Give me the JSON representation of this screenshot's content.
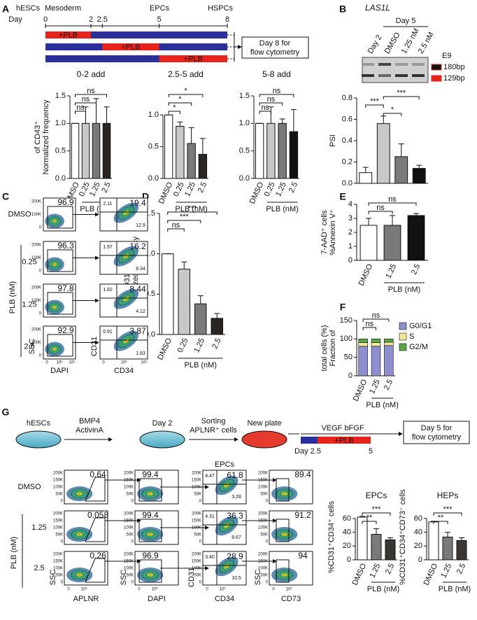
{
  "panel_labels": [
    "A",
    "B",
    "C",
    "D",
    "E",
    "F",
    "G"
  ],
  "schematic_a": {
    "day_label": "Day",
    "days": [
      0,
      2,
      2.5,
      5,
      8
    ],
    "stages": [
      "hESCs",
      "Mesoderm",
      "EPCs",
      "HSPCs"
    ],
    "treatments": [
      {
        "start": 0,
        "end": 2,
        "label": "+PLB"
      },
      {
        "start": 2.5,
        "end": 5,
        "label": "+PLB"
      },
      {
        "start": 5,
        "end": 8,
        "label": "+PLB"
      }
    ],
    "readout": [
      "Day 8 for",
      "flow cytometry"
    ]
  },
  "gel_b": {
    "gene": "LAS1L",
    "group": "Day 5",
    "exon": "E9",
    "bands": [
      "180bp",
      "129bp"
    ]
  },
  "flow_c": {
    "rows": [
      {
        "label": "DMSO",
        "gate": "96.9",
        "ul": "2.11",
        "ur": "19.4",
        "lr": "12.9"
      },
      {
        "label": "0.25",
        "gate": "96.3",
        "ul": "1.97",
        "ur": "16.2",
        "lr": "8.34"
      },
      {
        "label": "1.25",
        "gate": "97.8",
        "ul": "1.82",
        "ur": "8.44",
        "lr": "4.12"
      },
      {
        "label": "2.5",
        "gate": "92.9",
        "ul": "0.91",
        "ur": "3.87",
        "lr": "1.83"
      }
    ],
    "group_label": "PLB (nM)",
    "y_ticks": [
      "200K",
      "100K",
      "0"
    ],
    "x_ticks": [
      "0",
      "10³",
      "10⁵"
    ],
    "x_axes": [
      "DAPI",
      "CD34"
    ],
    "y_axes": [
      "SSC",
      "CD31"
    ]
  },
  "schematic_g": {
    "start": "hESCs",
    "factors": [
      "BMP4",
      "ActivinA"
    ],
    "day2": "Day 2",
    "sorting": [
      "Sorting",
      "APLNR⁺ cells"
    ],
    "plate": "New plate",
    "growth": "VEGF bFGF",
    "treatment": "+PLB",
    "days": [
      "Day 2.5",
      "5"
    ],
    "readout": [
      "Day 5 for",
      "flow cytometry"
    ]
  },
  "flow_g": {
    "heading": "EPCs",
    "rows": [
      {
        "label": "DMSO",
        "gate": "0.64",
        "live": "99.4",
        "ul": "4.47",
        "ur": "61.8",
        "lr": "3.28",
        "hep": "89.4"
      },
      {
        "label": "1.25",
        "gate": "0.058",
        "live": "99.4",
        "ul": "4.31",
        "ur": "36.3",
        "lr": "8.67",
        "hep": "91.2"
      },
      {
        "label": "2.5",
        "gate": "0.26",
        "live": "96.9",
        "ul": "3.40",
        "ur": "28.9",
        "lr": "10.5",
        "hep": "94"
      }
    ],
    "group_label": "PLB (nM)",
    "y_ticks": [
      "200K",
      "150K",
      "100K",
      "50K",
      "0"
    ],
    "x_ticks": [
      "0",
      "10³"
    ],
    "x_axes": [
      "APLNR",
      "DAPI",
      "CD34",
      "CD73"
    ],
    "y_axes": [
      "SSC",
      "SSC",
      "CD31",
      "SSC"
    ]
  },
  "chart_data": [
    {
      "type": "bar",
      "title": "0-2 add",
      "ylabel": [
        "Normalized frequency",
        "of CD43⁺"
      ],
      "xlabel": "PLB (nM)",
      "categories": [
        "DMSO",
        "0.25",
        "1.25",
        "2.5"
      ],
      "values": [
        1,
        1,
        1,
        1
      ],
      "errors": [
        0,
        0.3,
        0.45,
        0.3
      ],
      "colors": [
        "#ffffff",
        "#c8c8c8",
        "#7a7a7a",
        "#2a2622"
      ],
      "ylim": [
        0,
        1.5
      ],
      "yticks": [
        {
          "value": 0,
          "label": "0.0"
        },
        {
          "value": 0.5,
          "label": "0.5"
        },
        {
          "value": 1,
          "label": "1.0"
        },
        {
          "value": 1.5,
          "label": "1.5"
        }
      ],
      "brackets": [
        {
          "from": 0,
          "to": 3,
          "label": "ns"
        },
        {
          "from": 0,
          "to": 2,
          "label": "ns"
        },
        {
          "from": 0,
          "to": 1,
          "label": "ns"
        }
      ]
    },
    {
      "type": "bar",
      "title": "2.5-5 add",
      "xlabel": "PLB (nM)",
      "categories": [
        "DMSO",
        "0.25",
        "1.25",
        "2.5"
      ],
      "values": [
        1,
        0.82,
        0.55,
        0.38
      ],
      "errors": [
        0,
        0.07,
        0.25,
        0.25
      ],
      "colors": [
        "#ffffff",
        "#c8c8c8",
        "#7a7a7a",
        "#2a2622"
      ],
      "ylim": [
        0,
        1.3
      ],
      "yticks": [
        {
          "value": 0,
          "label": "0.0"
        },
        {
          "value": 0.5,
          "label": "0.5"
        },
        {
          "value": 1,
          "label": "1.0"
        }
      ],
      "brackets": [
        {
          "from": 0,
          "to": 3,
          "label": "*"
        },
        {
          "from": 0,
          "to": 2,
          "label": "*"
        },
        {
          "from": 0,
          "to": 1,
          "label": "*"
        }
      ]
    },
    {
      "type": "bar",
      "title": "5-8 add",
      "xlabel": "PLB (nM)",
      "categories": [
        "DMSO",
        "0.25",
        "1.25",
        "2.5"
      ],
      "values": [
        1,
        1,
        1,
        0.85
      ],
      "errors": [
        0,
        0.3,
        0.08,
        0.4
      ],
      "colors": [
        "#ffffff",
        "#c8c8c8",
        "#7a7a7a",
        "#111111"
      ],
      "ylim": [
        0,
        1.5
      ],
      "yticks": [
        {
          "value": 0,
          "label": "0.0"
        },
        {
          "value": 0.5,
          "label": "0.5"
        },
        {
          "value": 1,
          "label": "1.0"
        },
        {
          "value": 1.5,
          "label": "1.5"
        }
      ],
      "brackets": [
        {
          "from": 0,
          "to": 3,
          "label": "ns"
        },
        {
          "from": 0,
          "to": 2,
          "label": "ns"
        },
        {
          "from": 0,
          "to": 1,
          "label": "ns"
        }
      ]
    },
    {
      "type": "bar",
      "ylabel": [
        "PSI"
      ],
      "categories": [
        "Day 2",
        "DMSO",
        "1.25 nM",
        "2.5 nM"
      ],
      "values": [
        0.1,
        0.56,
        0.25,
        0.14
      ],
      "errors": [
        0.05,
        0.07,
        0.12,
        0.03
      ],
      "colors": [
        "#ffffff",
        "#c8c8c8",
        "#7a7a7a",
        "#111111"
      ],
      "ylim": [
        0,
        0.8
      ],
      "yticks": [
        {
          "value": 0,
          "label": "0.0"
        },
        {
          "value": 0.2,
          "label": "0.2"
        },
        {
          "value": 0.4,
          "label": "0.4"
        },
        {
          "value": 0.6,
          "label": "0.6"
        },
        {
          "value": 0.8,
          "label": "0.8"
        }
      ],
      "brackets": [
        {
          "from": 1,
          "to": 3,
          "label": "***"
        },
        {
          "from": 0,
          "to": 1,
          "label": "***"
        },
        {
          "from": 1,
          "to": 2,
          "label": "*"
        }
      ]
    },
    {
      "type": "bar",
      "ylabel": [
        "Normalized frequency",
        "of CD31⁺CD34⁺"
      ],
      "xlabel": "PLB (nM)",
      "categories": [
        "DMSO",
        "0.25",
        "1.25",
        "2.5"
      ],
      "values": [
        1,
        0.81,
        0.38,
        0.2
      ],
      "errors": [
        0,
        0.09,
        0.1,
        0.06
      ],
      "colors": [
        "#ffffff",
        "#c8c8c8",
        "#7a7a7a",
        "#2a2622"
      ],
      "ylim": [
        0,
        1.5
      ],
      "yticks": [
        {
          "value": 0,
          "label": "0.0"
        },
        {
          "value": 0.5,
          "label": "0.5"
        },
        {
          "value": 1,
          "label": "1.0"
        },
        {
          "value": 1.5,
          "label": "1.5"
        }
      ],
      "brackets": [
        {
          "from": 0,
          "to": 3,
          "label": "***"
        },
        {
          "from": 0,
          "to": 2,
          "label": "***"
        },
        {
          "from": 0,
          "to": 1,
          "label": "ns"
        }
      ]
    },
    {
      "type": "bar",
      "ylabel": [
        "%Annexin V⁺",
        "7-AAD⁺ cells"
      ],
      "xlabel": "PLB (nM)",
      "categories": [
        "DMSO",
        "1.25",
        "2.5"
      ],
      "values": [
        2.5,
        2.5,
        3.2
      ],
      "errors": [
        0.5,
        0.7,
        0.15
      ],
      "colors": [
        "#ffffff",
        "#7a7a7a",
        "#111111"
      ],
      "ylim": [
        0,
        4
      ],
      "yticks": [
        0,
        1,
        2,
        3,
        4
      ],
      "brackets": [
        {
          "from": 0,
          "to": 2,
          "label": "ns"
        },
        {
          "from": 0,
          "to": 1,
          "label": "ns"
        }
      ]
    },
    {
      "type": "stacked_bar",
      "ylabel": [
        "Fraction of",
        "total cells (%)"
      ],
      "xlabel": "PLB (nM)",
      "categories": [
        "DMSO",
        "1.25",
        "2.5"
      ],
      "series": [
        {
          "name": "G0/G1",
          "color": "#8f8fd0",
          "values": [
            80,
            80,
            82
          ]
        },
        {
          "name": "S",
          "color": "#f3e79a",
          "values": [
            10,
            10,
            9
          ]
        },
        {
          "name": "G2/M",
          "color": "#5aa548",
          "values": [
            10,
            10,
            9
          ]
        }
      ],
      "ylim": [
        0,
        150
      ],
      "yticks": [
        0,
        50,
        100,
        150
      ],
      "brackets": [
        {
          "from": 0,
          "to": 2,
          "label": "ns"
        },
        {
          "from": 0,
          "to": 1,
          "label": "ns"
        }
      ]
    },
    {
      "type": "bar",
      "title": "EPCs",
      "ylabel": [
        "%CD31⁺CD34⁺ cells"
      ],
      "xlabel": "PLB (nM)",
      "categories": [
        "DMSO",
        "1.25",
        "2.5"
      ],
      "values": [
        62,
        37,
        29
      ],
      "errors": [
        1,
        8,
        3
      ],
      "colors": [
        "#ffffff",
        "#7a7a7a",
        "#3a3632"
      ],
      "ylim": [
        0,
        66
      ],
      "yticks": [
        0,
        20,
        40,
        60
      ],
      "brackets": [
        {
          "from": 0,
          "to": 2,
          "label": "***"
        },
        {
          "from": 0,
          "to": 1,
          "label": "**"
        }
      ]
    },
    {
      "type": "bar",
      "title": "HEPs",
      "ylabel": [
        "%CD31⁺CD34⁺CD73⁻ cells"
      ],
      "xlabel": "PLB (nM)",
      "categories": [
        "DMSO",
        "1.25",
        "2.5"
      ],
      "values": [
        55,
        33,
        28
      ],
      "errors": [
        1,
        7,
        4
      ],
      "colors": [
        "#ffffff",
        "#7a7a7a",
        "#3a3632"
      ],
      "ylim": [
        0,
        66
      ],
      "yticks": [
        0,
        20,
        40,
        60
      ],
      "brackets": [
        {
          "from": 0,
          "to": 2,
          "label": "***"
        },
        {
          "from": 0,
          "to": 1,
          "label": "**"
        }
      ]
    }
  ]
}
